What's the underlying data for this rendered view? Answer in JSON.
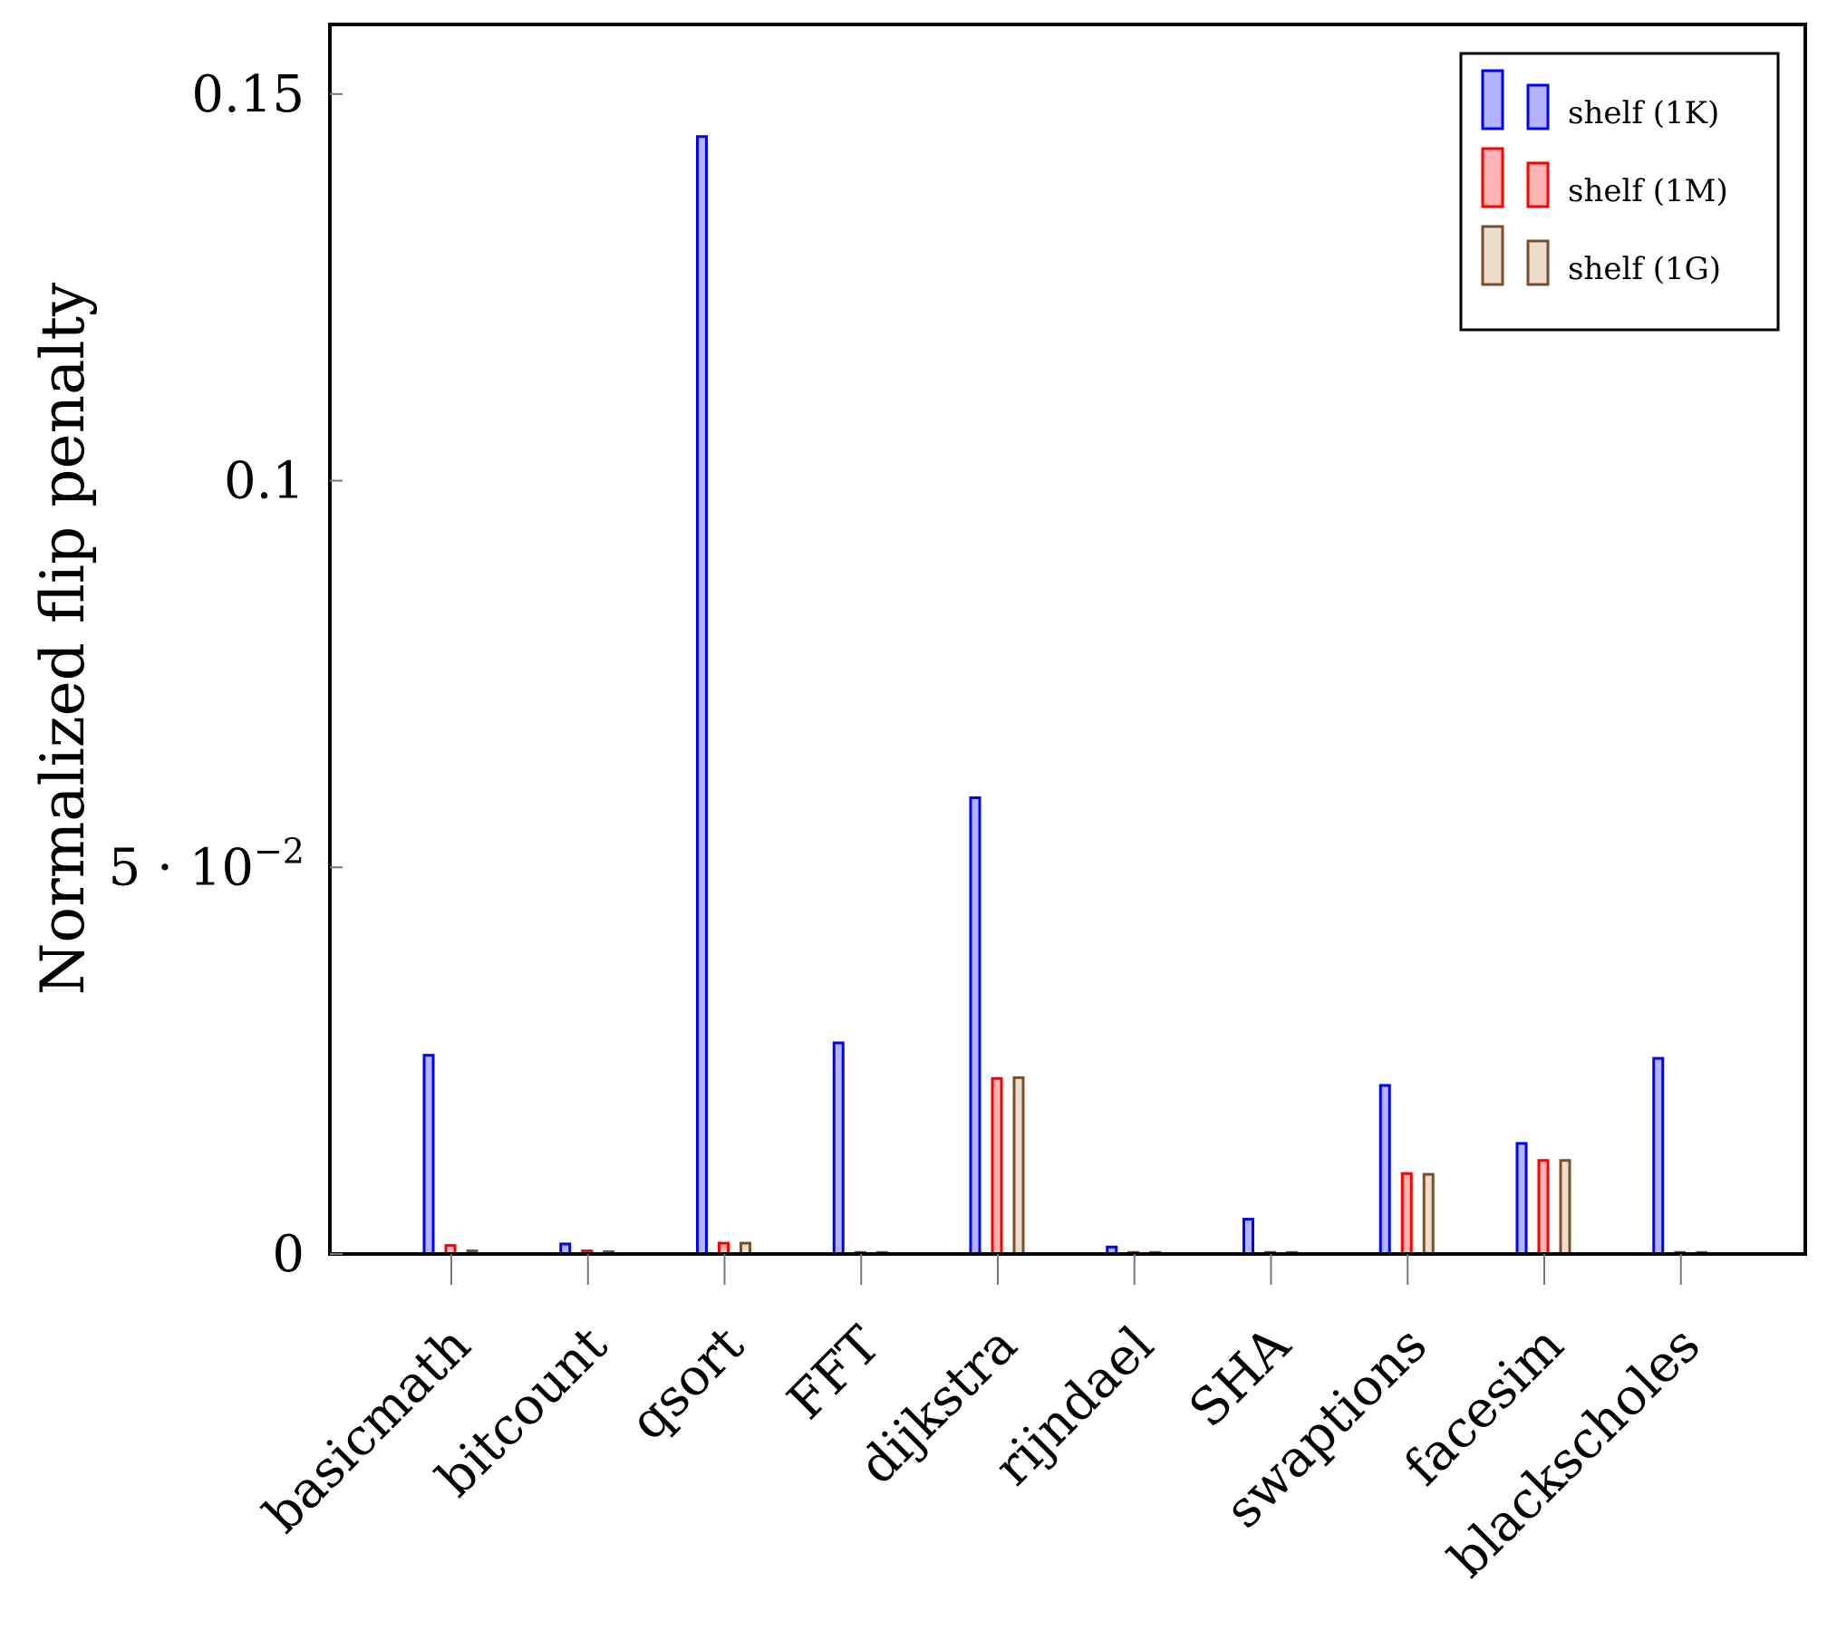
{
  "chart_data": {
    "type": "bar",
    "title": "",
    "xlabel": "",
    "ylabel": "Normalized flip penalty",
    "ylim": [
      0,
      0.159
    ],
    "yticks": [
      {
        "value": 0,
        "label": "0"
      },
      {
        "value": 0.05,
        "label": "5 · 10",
        "exponent": "−2"
      },
      {
        "value": 0.1,
        "label": "0.1"
      },
      {
        "value": 0.15,
        "label": "0.15"
      }
    ],
    "categories": [
      "basicmath",
      "bitcount",
      "qsort",
      "FFT",
      "dijkstra",
      "rijndael",
      "SHA",
      "swaptions",
      "facesim",
      "blackscholes"
    ],
    "series": [
      {
        "name": "shelf (1K)",
        "stroke": "#0000ff",
        "fill": "#b3b3ff",
        "values": [
          0.0257,
          0.0013,
          0.1445,
          0.0273,
          0.059,
          0.0009,
          0.0045,
          0.0218,
          0.0143,
          0.0253
        ]
      },
      {
        "name": "shelf (1M)",
        "stroke": "#ff0000",
        "fill": "#ffb3b3",
        "values": [
          0.0011,
          0.0004,
          0.0014,
          0.0002,
          0.0227,
          0.0002,
          0.0002,
          0.0104,
          0.0121,
          0.0002
        ]
      },
      {
        "name": "shelf (1G)",
        "stroke": "#7a4f2b",
        "fill": "#ecdccb",
        "values": [
          0.0004,
          0.0003,
          0.0014,
          0.0002,
          0.0228,
          0.0002,
          0.0002,
          0.0103,
          0.0121,
          0.0002
        ]
      }
    ],
    "legend_position": "top-right",
    "grid": false
  }
}
